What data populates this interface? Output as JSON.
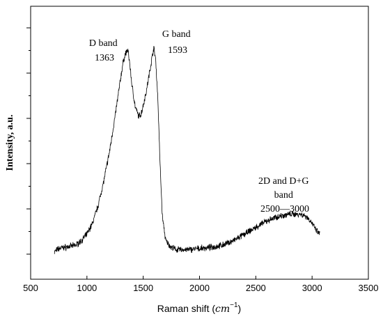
{
  "chart_data": {
    "type": "line",
    "title": "",
    "xlabel_prefix": "Raman shift (",
    "xlabel_unit": "cm",
    "xlabel_exp": "−1",
    "xlabel_suffix": ")",
    "ylabel": "Intensity, a.u.",
    "xlim": [
      500,
      3500
    ],
    "ylim": [
      0,
      1
    ],
    "x_ticks": [
      "500",
      "1000",
      "1500",
      "2000",
      "2500",
      "3000",
      "3500"
    ],
    "y_ticks_labeled": false,
    "grid": false,
    "annotations": [
      {
        "lines": [
          "D band",
          "1363"
        ]
      },
      {
        "lines": [
          "G band",
          "1593"
        ]
      },
      {
        "lines": [
          "2D and D+G",
          "band",
          "2500—3000"
        ]
      }
    ],
    "series": [
      {
        "x": [
          710,
          750,
          800,
          850,
          900,
          950,
          1000,
          1050,
          1100,
          1150,
          1200,
          1250,
          1290,
          1320,
          1340,
          1363,
          1380,
          1400,
          1430,
          1460,
          1480,
          1500,
          1530,
          1560,
          1580,
          1593,
          1610,
          1630,
          1650,
          1670,
          1700,
          1750,
          1800,
          1900,
          2000,
          2100,
          2200,
          2300,
          2400,
          2500,
          2600,
          2700,
          2800,
          2900,
          2950,
          3000,
          3030,
          3070
        ],
        "y": [
          0.01,
          0.025,
          0.03,
          0.035,
          0.04,
          0.06,
          0.09,
          0.14,
          0.22,
          0.33,
          0.46,
          0.62,
          0.76,
          0.86,
          0.9,
          0.92,
          0.86,
          0.76,
          0.66,
          0.62,
          0.63,
          0.67,
          0.74,
          0.83,
          0.89,
          0.93,
          0.88,
          0.7,
          0.4,
          0.17,
          0.06,
          0.03,
          0.02,
          0.02,
          0.025,
          0.03,
          0.04,
          0.06,
          0.09,
          0.12,
          0.15,
          0.17,
          0.18,
          0.18,
          0.17,
          0.14,
          0.11,
          0.09
        ]
      }
    ]
  }
}
